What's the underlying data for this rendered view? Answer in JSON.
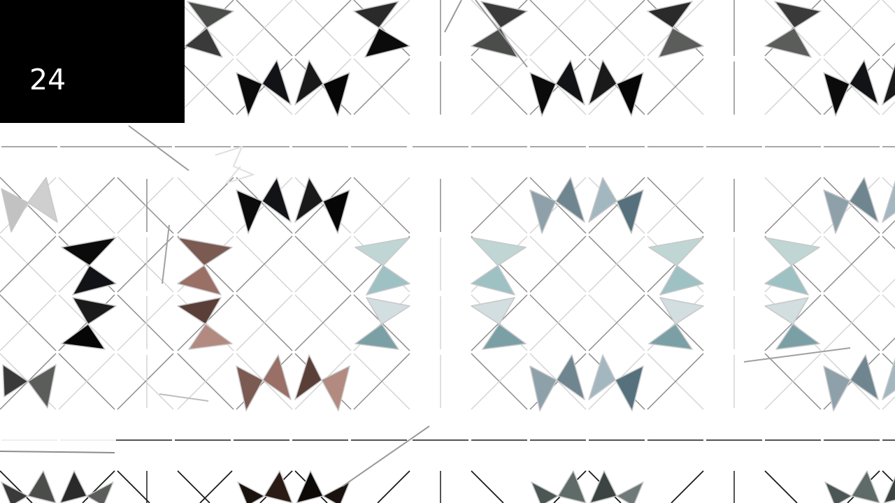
{
  "hud": {
    "counter": "24"
  },
  "colors": {
    "background": "#ffffff",
    "panel": "#000000",
    "panel_text": "#ffffff",
    "grid_line": "#8c8c8c",
    "grid_line_faint": "#d4d4d4",
    "triangle_outline": "#c8c8c8"
  },
  "tile_groups": [
    {
      "name": "dark-gray",
      "colors": [
        "#3a3a3a",
        "#4b4d4b",
        "#2a2a2a",
        "#5b5d5b"
      ]
    },
    {
      "name": "black",
      "colors": [
        "#0b0b0b",
        "#111317",
        "#1a1a1a",
        "#060606"
      ]
    },
    {
      "name": "light-gray",
      "colors": [
        "#c2c2c2",
        "#cfcfcf",
        "#b4b6b6"
      ]
    },
    {
      "name": "blue-gray",
      "colors": [
        "#8ea1ab",
        "#6f8690",
        "#a3b7c0",
        "#56717d"
      ]
    },
    {
      "name": "pale-teal",
      "colors": [
        "#bfd6d4",
        "#9ec1c4",
        "#d2dee0",
        "#7aa0a6"
      ]
    },
    {
      "name": "brown-skin",
      "colors": [
        "#7b5a52",
        "#9a6f66",
        "#5a3f39",
        "#b38a80"
      ]
    },
    {
      "name": "slate",
      "colors": [
        "#4c5654",
        "#5f6b68",
        "#3b4442",
        "#6e7a77"
      ]
    },
    {
      "name": "near-black-brown",
      "colors": [
        "#1a120e",
        "#2a1c15",
        "#0d0907"
      ]
    }
  ]
}
